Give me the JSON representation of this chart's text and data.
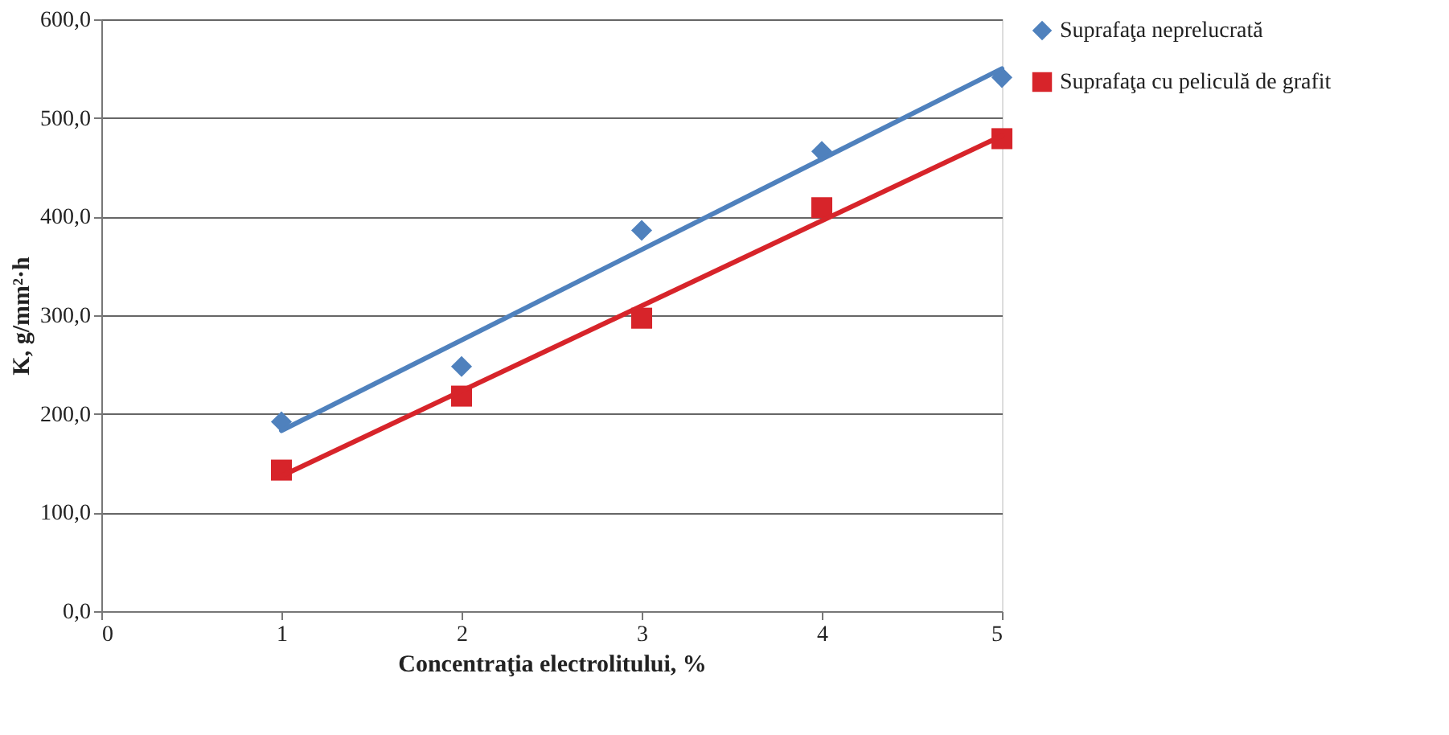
{
  "chart_data": {
    "type": "scatter",
    "xlabel": "Concentraţia electrolitului, %",
    "ylabel": "K, g/mm²·h",
    "xlim": [
      0,
      5
    ],
    "xticks": [
      0,
      1,
      2,
      3,
      4,
      5
    ],
    "ylim": [
      0,
      600
    ],
    "yticks": [
      {
        "value": 0,
        "label": "0,0"
      },
      {
        "value": 100,
        "label": "100,0"
      },
      {
        "value": 200,
        "label": "200,0"
      },
      {
        "value": 300,
        "label": "300,0"
      },
      {
        "value": 400,
        "label": "400,0"
      },
      {
        "value": 500,
        "label": "500,0"
      },
      {
        "value": 600,
        "label": "600,0"
      }
    ],
    "grid": "y",
    "legend": "right",
    "series": [
      {
        "name": "Suprafaţa neprelucrată",
        "marker": "diamond",
        "color": "#4f81bd",
        "x": [
          1,
          2,
          3,
          4,
          5
        ],
        "values": [
          192,
          248,
          386,
          466,
          541
        ]
      },
      {
        "name": "Suprafaţa cu peliculă de grafit",
        "marker": "square",
        "color": "#d7242a",
        "x": [
          1,
          2,
          3,
          4,
          5
        ],
        "values": [
          143,
          218,
          297,
          409,
          479
        ]
      },
      {
        "type": "line",
        "marker": "none",
        "line_style": "solid",
        "color": "#4f81bd",
        "x": [
          1,
          5
        ],
        "values": [
          183,
          550
        ]
      },
      {
        "type": "line",
        "marker": "none",
        "line_style": "solid",
        "color": "#d7242a",
        "x": [
          1,
          5
        ],
        "values": [
          137,
          482
        ]
      }
    ]
  }
}
